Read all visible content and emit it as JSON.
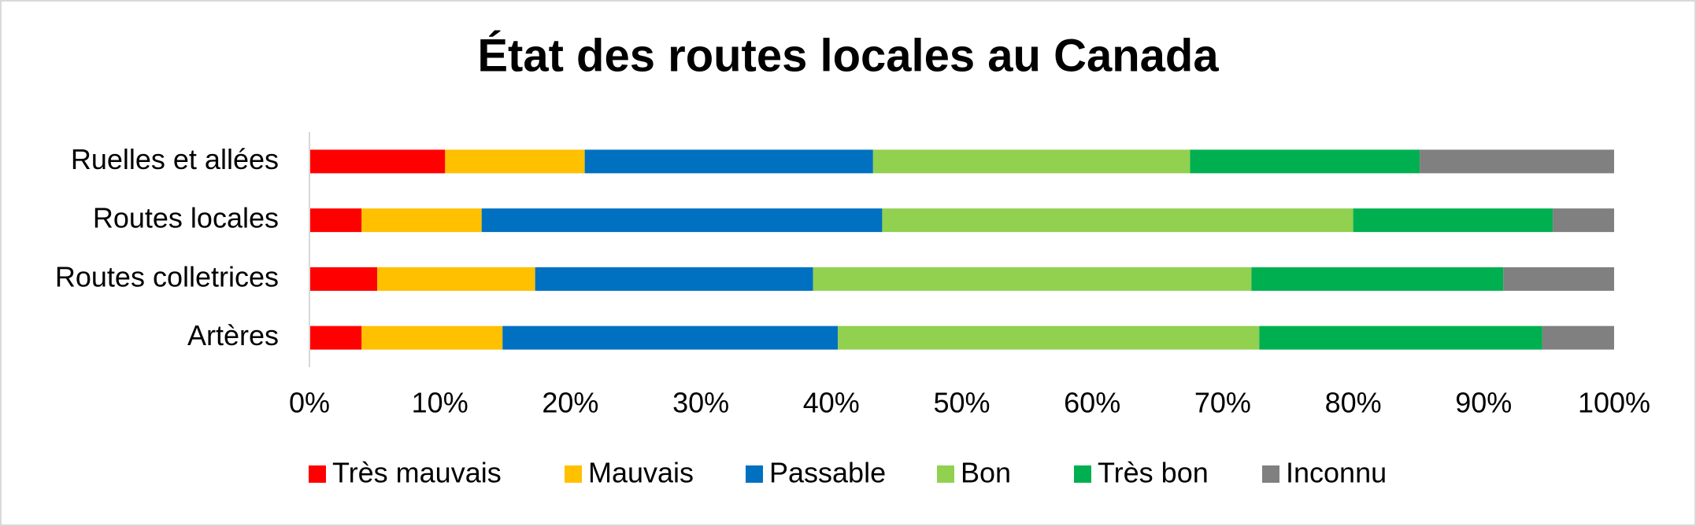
{
  "chart_data": {
    "type": "stacked_bar_horizontal",
    "title": "État des routes locales au Canada",
    "categories": [
      "Ruelles et allées",
      "Routes locales",
      "Routes colletrices",
      "Artères"
    ],
    "series": [
      {
        "name": "Très mauvais",
        "color": "#ff0000",
        "values": [
          10.4,
          4.0,
          5.2,
          4.0
        ]
      },
      {
        "name": "Mauvais",
        "color": "#ffc000",
        "values": [
          10.7,
          9.2,
          12.1,
          10.8
        ]
      },
      {
        "name": "Passable",
        "color": "#0070c0",
        "values": [
          22.1,
          30.7,
          21.3,
          25.7
        ]
      },
      {
        "name": "Bon",
        "color": "#92d050",
        "values": [
          24.3,
          36.1,
          33.6,
          32.3
        ]
      },
      {
        "name": "Très bon",
        "color": "#00b050",
        "values": [
          17.6,
          15.3,
          19.3,
          21.7
        ]
      },
      {
        "name": "Inconnu",
        "color": "#808080",
        "values": [
          14.9,
          4.7,
          8.5,
          5.5
        ]
      }
    ],
    "xlim": [
      0,
      100
    ],
    "xticks": [
      {
        "value": 0,
        "label": "0%"
      },
      {
        "value": 10,
        "label": "10%"
      },
      {
        "value": 20,
        "label": "20%"
      },
      {
        "value": 30,
        "label": "30%"
      },
      {
        "value": 40,
        "label": "40%"
      },
      {
        "value": 50,
        "label": "50%"
      },
      {
        "value": 60,
        "label": "60%"
      },
      {
        "value": 70,
        "label": "70%"
      },
      {
        "value": 80,
        "label": "80%"
      },
      {
        "value": 90,
        "label": "90%"
      },
      {
        "value": 100,
        "label": "100%"
      }
    ],
    "legend": "bottom"
  }
}
